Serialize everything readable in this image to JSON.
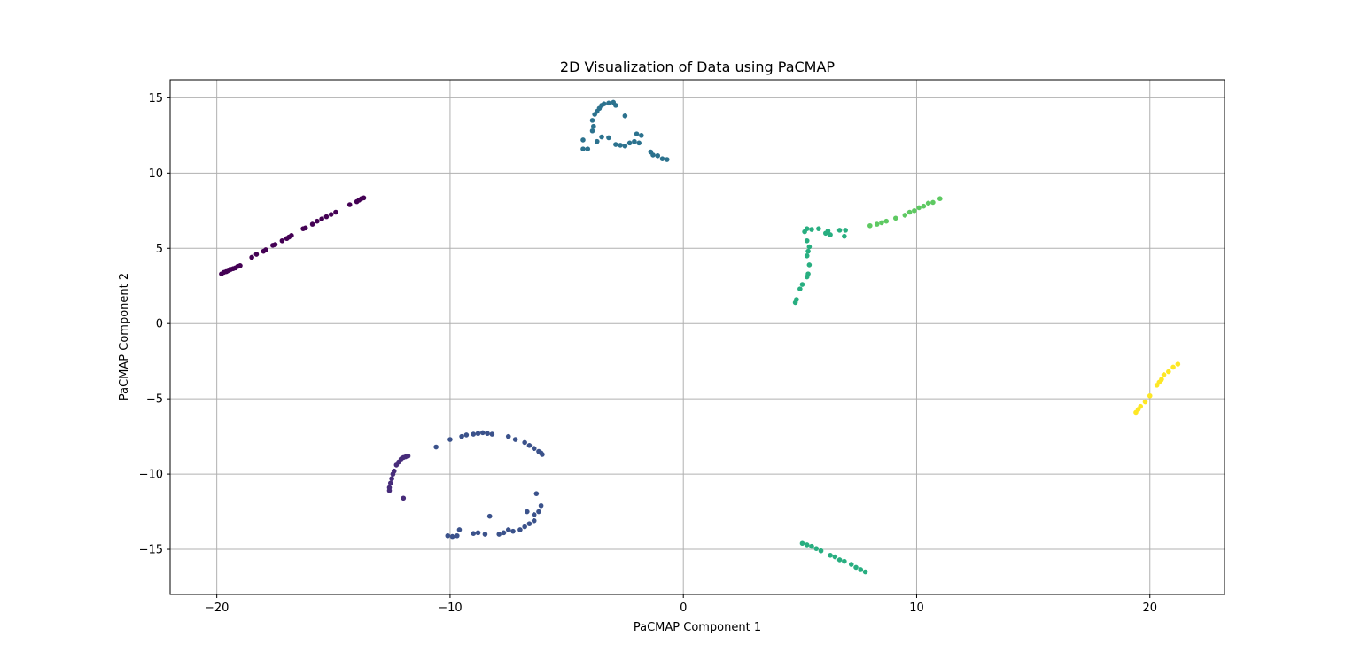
{
  "chart_data": {
    "type": "scatter",
    "title": "2D Visualization of Data using PaCMAP",
    "xlabel": "PaCMAP Component 1",
    "ylabel": "PaCMAP Component 2",
    "xlim": [
      -22,
      23.2
    ],
    "ylim": [
      -18,
      16.2
    ],
    "xticks": [
      -20,
      -10,
      0,
      10,
      20
    ],
    "yticks": [
      -15,
      -10,
      -5,
      0,
      5,
      10,
      15
    ],
    "grid": true,
    "legend": "none",
    "colormap": "viridis",
    "colors": {
      "c0": "#440154",
      "c1": "#472c7a",
      "c2": "#3b528b",
      "c3": "#2c728e",
      "c4": "#21918c",
      "c5": "#28ae80",
      "c6": "#5ec962",
      "c7": "#fde725"
    },
    "points": [
      {
        "x": -19.8,
        "y": 3.3,
        "c": "c0"
      },
      {
        "x": -19.7,
        "y": 3.4,
        "c": "c0"
      },
      {
        "x": -19.6,
        "y": 3.45,
        "c": "c0"
      },
      {
        "x": -19.5,
        "y": 3.5,
        "c": "c0"
      },
      {
        "x": -19.4,
        "y": 3.6,
        "c": "c0"
      },
      {
        "x": -19.3,
        "y": 3.65,
        "c": "c0"
      },
      {
        "x": -19.2,
        "y": 3.7,
        "c": "c0"
      },
      {
        "x": -19.1,
        "y": 3.8,
        "c": "c0"
      },
      {
        "x": -19.0,
        "y": 3.85,
        "c": "c0"
      },
      {
        "x": -18.5,
        "y": 4.4,
        "c": "c0"
      },
      {
        "x": -18.3,
        "y": 4.6,
        "c": "c0"
      },
      {
        "x": -18.0,
        "y": 4.8,
        "c": "c0"
      },
      {
        "x": -17.9,
        "y": 4.9,
        "c": "c0"
      },
      {
        "x": -17.6,
        "y": 5.2,
        "c": "c0"
      },
      {
        "x": -17.5,
        "y": 5.25,
        "c": "c0"
      },
      {
        "x": -17.2,
        "y": 5.5,
        "c": "c0"
      },
      {
        "x": -17.0,
        "y": 5.65,
        "c": "c0"
      },
      {
        "x": -16.9,
        "y": 5.75,
        "c": "c0"
      },
      {
        "x": -16.8,
        "y": 5.85,
        "c": "c0"
      },
      {
        "x": -16.3,
        "y": 6.3,
        "c": "c0"
      },
      {
        "x": -16.2,
        "y": 6.35,
        "c": "c0"
      },
      {
        "x": -15.9,
        "y": 6.6,
        "c": "c0"
      },
      {
        "x": -15.7,
        "y": 6.8,
        "c": "c0"
      },
      {
        "x": -15.5,
        "y": 6.95,
        "c": "c0"
      },
      {
        "x": -15.3,
        "y": 7.1,
        "c": "c0"
      },
      {
        "x": -15.1,
        "y": 7.25,
        "c": "c0"
      },
      {
        "x": -14.9,
        "y": 7.4,
        "c": "c0"
      },
      {
        "x": -14.3,
        "y": 7.9,
        "c": "c0"
      },
      {
        "x": -14.0,
        "y": 8.1,
        "c": "c0"
      },
      {
        "x": -13.9,
        "y": 8.2,
        "c": "c0"
      },
      {
        "x": -13.8,
        "y": 8.3,
        "c": "c0"
      },
      {
        "x": -13.7,
        "y": 8.35,
        "c": "c0"
      },
      {
        "x": -12.6,
        "y": -11.1,
        "c": "c1"
      },
      {
        "x": -12.6,
        "y": -10.9,
        "c": "c1"
      },
      {
        "x": -12.55,
        "y": -10.6,
        "c": "c1"
      },
      {
        "x": -12.5,
        "y": -10.3,
        "c": "c1"
      },
      {
        "x": -12.45,
        "y": -10.0,
        "c": "c1"
      },
      {
        "x": -12.4,
        "y": -9.8,
        "c": "c1"
      },
      {
        "x": -12.3,
        "y": -9.4,
        "c": "c1"
      },
      {
        "x": -12.2,
        "y": -9.2,
        "c": "c1"
      },
      {
        "x": -12.1,
        "y": -9.0,
        "c": "c1"
      },
      {
        "x": -12.0,
        "y": -8.9,
        "c": "c1"
      },
      {
        "x": -11.9,
        "y": -8.85,
        "c": "c1"
      },
      {
        "x": -11.8,
        "y": -8.8,
        "c": "c1"
      },
      {
        "x": -12.0,
        "y": -11.6,
        "c": "c1"
      },
      {
        "x": -10.6,
        "y": -8.2,
        "c": "c2"
      },
      {
        "x": -10.0,
        "y": -7.7,
        "c": "c2"
      },
      {
        "x": -9.5,
        "y": -7.5,
        "c": "c2"
      },
      {
        "x": -9.3,
        "y": -7.4,
        "c": "c2"
      },
      {
        "x": -9.0,
        "y": -7.35,
        "c": "c2"
      },
      {
        "x": -8.8,
        "y": -7.3,
        "c": "c2"
      },
      {
        "x": -8.6,
        "y": -7.25,
        "c": "c2"
      },
      {
        "x": -8.4,
        "y": -7.3,
        "c": "c2"
      },
      {
        "x": -8.2,
        "y": -7.35,
        "c": "c2"
      },
      {
        "x": -7.5,
        "y": -7.5,
        "c": "c2"
      },
      {
        "x": -7.2,
        "y": -7.7,
        "c": "c2"
      },
      {
        "x": -6.8,
        "y": -7.9,
        "c": "c2"
      },
      {
        "x": -6.6,
        "y": -8.1,
        "c": "c2"
      },
      {
        "x": -6.4,
        "y": -8.3,
        "c": "c2"
      },
      {
        "x": -6.2,
        "y": -8.5,
        "c": "c2"
      },
      {
        "x": -6.1,
        "y": -8.6,
        "c": "c2"
      },
      {
        "x": -6.05,
        "y": -8.7,
        "c": "c2"
      },
      {
        "x": -6.3,
        "y": -11.3,
        "c": "c2"
      },
      {
        "x": -6.1,
        "y": -12.1,
        "c": "c2"
      },
      {
        "x": -6.2,
        "y": -12.5,
        "c": "c2"
      },
      {
        "x": -6.4,
        "y": -12.7,
        "c": "c2"
      },
      {
        "x": -6.7,
        "y": -12.5,
        "c": "c2"
      },
      {
        "x": -6.4,
        "y": -13.1,
        "c": "c2"
      },
      {
        "x": -6.6,
        "y": -13.3,
        "c": "c2"
      },
      {
        "x": -6.8,
        "y": -13.5,
        "c": "c2"
      },
      {
        "x": -7.0,
        "y": -13.7,
        "c": "c2"
      },
      {
        "x": -7.3,
        "y": -13.8,
        "c": "c2"
      },
      {
        "x": -7.5,
        "y": -13.7,
        "c": "c2"
      },
      {
        "x": -7.7,
        "y": -13.9,
        "c": "c2"
      },
      {
        "x": -7.9,
        "y": -14.0,
        "c": "c2"
      },
      {
        "x": -8.3,
        "y": -12.8,
        "c": "c2"
      },
      {
        "x": -8.5,
        "y": -14.0,
        "c": "c2"
      },
      {
        "x": -8.8,
        "y": -13.9,
        "c": "c2"
      },
      {
        "x": -9.0,
        "y": -13.95,
        "c": "c2"
      },
      {
        "x": -9.6,
        "y": -13.7,
        "c": "c2"
      },
      {
        "x": -9.7,
        "y": -14.1,
        "c": "c2"
      },
      {
        "x": -9.9,
        "y": -14.15,
        "c": "c2"
      },
      {
        "x": -10.1,
        "y": -14.1,
        "c": "c2"
      },
      {
        "x": -4.3,
        "y": 12.2,
        "c": "c3"
      },
      {
        "x": -4.3,
        "y": 11.6,
        "c": "c3"
      },
      {
        "x": -4.1,
        "y": 11.6,
        "c": "c3"
      },
      {
        "x": -3.9,
        "y": 12.8,
        "c": "c3"
      },
      {
        "x": -3.85,
        "y": 13.1,
        "c": "c3"
      },
      {
        "x": -3.9,
        "y": 13.5,
        "c": "c3"
      },
      {
        "x": -3.8,
        "y": 13.9,
        "c": "c3"
      },
      {
        "x": -3.7,
        "y": 14.1,
        "c": "c3"
      },
      {
        "x": -3.6,
        "y": 14.3,
        "c": "c3"
      },
      {
        "x": -3.5,
        "y": 14.5,
        "c": "c3"
      },
      {
        "x": -3.4,
        "y": 14.6,
        "c": "c3"
      },
      {
        "x": -3.2,
        "y": 14.65,
        "c": "c3"
      },
      {
        "x": -3.0,
        "y": 14.7,
        "c": "c3"
      },
      {
        "x": -2.9,
        "y": 14.5,
        "c": "c3"
      },
      {
        "x": -3.7,
        "y": 12.1,
        "c": "c3"
      },
      {
        "x": -3.5,
        "y": 12.4,
        "c": "c3"
      },
      {
        "x": -3.2,
        "y": 12.35,
        "c": "c3"
      },
      {
        "x": -2.9,
        "y": 11.9,
        "c": "c3"
      },
      {
        "x": -2.7,
        "y": 11.85,
        "c": "c3"
      },
      {
        "x": -2.5,
        "y": 11.8,
        "c": "c3"
      },
      {
        "x": -2.5,
        "y": 13.8,
        "c": "c3"
      },
      {
        "x": -2.3,
        "y": 12.0,
        "c": "c3"
      },
      {
        "x": -2.1,
        "y": 12.1,
        "c": "c3"
      },
      {
        "x": -2.0,
        "y": 12.6,
        "c": "c3"
      },
      {
        "x": -1.9,
        "y": 12.0,
        "c": "c3"
      },
      {
        "x": -1.8,
        "y": 12.5,
        "c": "c3"
      },
      {
        "x": -1.4,
        "y": 11.4,
        "c": "c3"
      },
      {
        "x": -1.3,
        "y": 11.2,
        "c": "c3"
      },
      {
        "x": -1.1,
        "y": 11.15,
        "c": "c3"
      },
      {
        "x": -0.9,
        "y": 10.95,
        "c": "c3"
      },
      {
        "x": -0.7,
        "y": 10.9,
        "c": "c3"
      },
      {
        "x": 4.8,
        "y": 1.4,
        "c": "c5"
      },
      {
        "x": 4.85,
        "y": 1.6,
        "c": "c5"
      },
      {
        "x": 5.0,
        "y": 2.3,
        "c": "c5"
      },
      {
        "x": 5.1,
        "y": 2.6,
        "c": "c5"
      },
      {
        "x": 5.3,
        "y": 3.1,
        "c": "c5"
      },
      {
        "x": 5.35,
        "y": 3.3,
        "c": "c5"
      },
      {
        "x": 5.4,
        "y": 3.9,
        "c": "c5"
      },
      {
        "x": 5.3,
        "y": 4.5,
        "c": "c5"
      },
      {
        "x": 5.35,
        "y": 4.8,
        "c": "c5"
      },
      {
        "x": 5.4,
        "y": 5.1,
        "c": "c5"
      },
      {
        "x": 5.3,
        "y": 5.5,
        "c": "c5"
      },
      {
        "x": 5.2,
        "y": 6.1,
        "c": "c5"
      },
      {
        "x": 5.3,
        "y": 6.3,
        "c": "c5"
      },
      {
        "x": 5.5,
        "y": 6.25,
        "c": "c5"
      },
      {
        "x": 5.8,
        "y": 6.3,
        "c": "c5"
      },
      {
        "x": 6.1,
        "y": 6.0,
        "c": "c5"
      },
      {
        "x": 6.3,
        "y": 5.9,
        "c": "c5"
      },
      {
        "x": 6.2,
        "y": 6.15,
        "c": "c5"
      },
      {
        "x": 6.7,
        "y": 6.2,
        "c": "c5"
      },
      {
        "x": 6.9,
        "y": 5.8,
        "c": "c5"
      },
      {
        "x": 6.95,
        "y": 6.2,
        "c": "c5"
      },
      {
        "x": 5.1,
        "y": -14.6,
        "c": "c5"
      },
      {
        "x": 5.3,
        "y": -14.7,
        "c": "c5"
      },
      {
        "x": 5.5,
        "y": -14.8,
        "c": "c5"
      },
      {
        "x": 5.7,
        "y": -14.95,
        "c": "c5"
      },
      {
        "x": 5.9,
        "y": -15.1,
        "c": "c5"
      },
      {
        "x": 6.3,
        "y": -15.4,
        "c": "c5"
      },
      {
        "x": 6.5,
        "y": -15.5,
        "c": "c5"
      },
      {
        "x": 6.7,
        "y": -15.7,
        "c": "c5"
      },
      {
        "x": 6.9,
        "y": -15.8,
        "c": "c5"
      },
      {
        "x": 7.2,
        "y": -16.0,
        "c": "c5"
      },
      {
        "x": 7.4,
        "y": -16.2,
        "c": "c5"
      },
      {
        "x": 7.6,
        "y": -16.35,
        "c": "c5"
      },
      {
        "x": 7.8,
        "y": -16.5,
        "c": "c5"
      },
      {
        "x": 8.0,
        "y": 6.5,
        "c": "c6"
      },
      {
        "x": 8.3,
        "y": 6.6,
        "c": "c6"
      },
      {
        "x": 8.5,
        "y": 6.7,
        "c": "c6"
      },
      {
        "x": 8.7,
        "y": 6.8,
        "c": "c6"
      },
      {
        "x": 9.1,
        "y": 7.0,
        "c": "c6"
      },
      {
        "x": 9.5,
        "y": 7.2,
        "c": "c6"
      },
      {
        "x": 9.7,
        "y": 7.4,
        "c": "c6"
      },
      {
        "x": 9.9,
        "y": 7.5,
        "c": "c6"
      },
      {
        "x": 10.1,
        "y": 7.7,
        "c": "c6"
      },
      {
        "x": 10.3,
        "y": 7.8,
        "c": "c6"
      },
      {
        "x": 10.5,
        "y": 8.0,
        "c": "c6"
      },
      {
        "x": 10.7,
        "y": 8.05,
        "c": "c6"
      },
      {
        "x": 11.0,
        "y": 8.3,
        "c": "c6"
      },
      {
        "x": 19.4,
        "y": -5.9,
        "c": "c7"
      },
      {
        "x": 19.5,
        "y": -5.7,
        "c": "c7"
      },
      {
        "x": 19.6,
        "y": -5.5,
        "c": "c7"
      },
      {
        "x": 19.8,
        "y": -5.2,
        "c": "c7"
      },
      {
        "x": 20.0,
        "y": -4.8,
        "c": "c7"
      },
      {
        "x": 20.3,
        "y": -4.1,
        "c": "c7"
      },
      {
        "x": 20.4,
        "y": -3.9,
        "c": "c7"
      },
      {
        "x": 20.5,
        "y": -3.7,
        "c": "c7"
      },
      {
        "x": 20.6,
        "y": -3.4,
        "c": "c7"
      },
      {
        "x": 20.8,
        "y": -3.2,
        "c": "c7"
      },
      {
        "x": 21.0,
        "y": -2.9,
        "c": "c7"
      },
      {
        "x": 21.2,
        "y": -2.7,
        "c": "c7"
      }
    ]
  }
}
